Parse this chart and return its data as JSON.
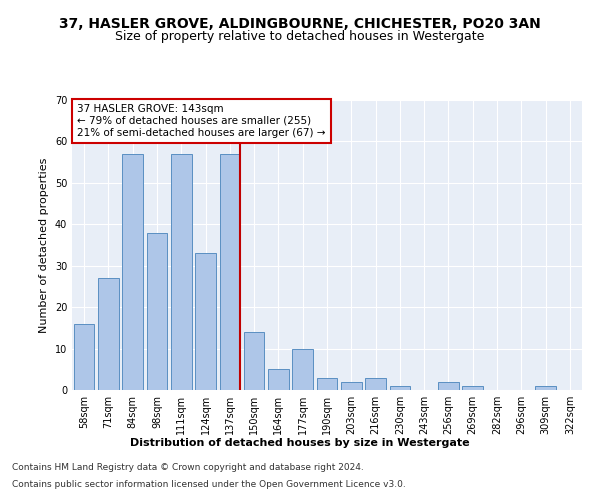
{
  "title": "37, HASLER GROVE, ALDINGBOURNE, CHICHESTER, PO20 3AN",
  "subtitle": "Size of property relative to detached houses in Westergate",
  "xlabel": "Distribution of detached houses by size in Westergate",
  "ylabel": "Number of detached properties",
  "categories": [
    "58sqm",
    "71sqm",
    "84sqm",
    "98sqm",
    "111sqm",
    "124sqm",
    "137sqm",
    "150sqm",
    "164sqm",
    "177sqm",
    "190sqm",
    "203sqm",
    "216sqm",
    "230sqm",
    "243sqm",
    "256sqm",
    "269sqm",
    "282sqm",
    "296sqm",
    "309sqm",
    "322sqm"
  ],
  "values": [
    16,
    27,
    57,
    38,
    57,
    33,
    57,
    14,
    5,
    10,
    3,
    2,
    3,
    1,
    0,
    2,
    1,
    0,
    0,
    1,
    0
  ],
  "bar_color": "#aec6e8",
  "bar_edge_color": "#5a8fc2",
  "highlight_index": 6,
  "highlight_color": "#c00000",
  "annotation_text": "37 HASLER GROVE: 143sqm\n← 79% of detached houses are smaller (255)\n21% of semi-detached houses are larger (67) →",
  "annotation_box_color": "#ffffff",
  "annotation_box_edge_color": "#cc0000",
  "ylim": [
    0,
    70
  ],
  "yticks": [
    0,
    10,
    20,
    30,
    40,
    50,
    60,
    70
  ],
  "background_color": "#e8eef7",
  "footer_line1": "Contains HM Land Registry data © Crown copyright and database right 2024.",
  "footer_line2": "Contains public sector information licensed under the Open Government Licence v3.0.",
  "title_fontsize": 10,
  "subtitle_fontsize": 9,
  "axis_label_fontsize": 8,
  "tick_fontsize": 7,
  "annotation_fontsize": 7.5,
  "footer_fontsize": 6.5
}
